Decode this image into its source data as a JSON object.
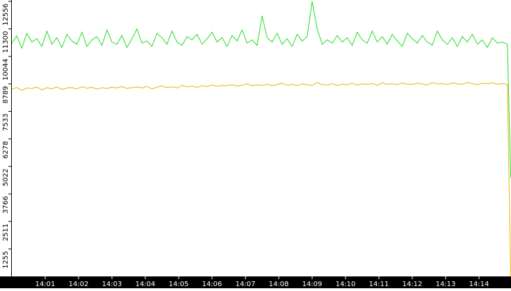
{
  "chart_data": {
    "type": "line",
    "x": [
      840,
      840.15,
      840.3,
      840.45,
      840.6,
      840.75,
      840.9,
      841.05,
      841.2,
      841.35,
      841.5,
      841.65,
      841.8,
      841.95,
      842.1,
      842.25,
      842.4,
      842.55,
      842.7,
      842.85,
      843,
      843.15,
      843.3,
      843.45,
      843.6,
      843.75,
      843.9,
      844.05,
      844.2,
      844.35,
      844.5,
      844.65,
      844.8,
      844.95,
      845.1,
      845.25,
      845.4,
      845.55,
      845.7,
      845.85,
      846,
      846.15,
      846.3,
      846.45,
      846.6,
      846.75,
      846.9,
      847.05,
      847.2,
      847.35,
      847.5,
      847.65,
      847.8,
      847.95,
      848.1,
      848.25,
      848.4,
      848.55,
      848.7,
      848.85,
      849,
      849.15,
      849.3,
      849.45,
      849.6,
      849.75,
      849.9,
      850.05,
      850.2,
      850.35,
      850.5,
      850.65,
      850.8,
      850.95,
      851.1,
      851.25,
      851.4,
      851.55,
      851.7,
      851.85,
      852,
      852.15,
      852.3,
      852.45,
      852.6,
      852.75,
      852.9,
      853.05,
      853.2,
      853.35,
      853.5,
      853.65,
      853.8,
      853.95,
      854.1,
      854.25,
      854.4,
      854.55,
      854.7,
      854.85,
      854.95
    ],
    "series": [
      {
        "color": "#22dd22",
        "values": [
          10650,
          10980,
          10420,
          11100,
          10700,
          10850,
          10500,
          11200,
          10600,
          10900,
          10450,
          11050,
          10750,
          10600,
          11150,
          10500,
          10800,
          10950,
          10550,
          11250,
          10700,
          10600,
          11000,
          10450,
          10850,
          11300,
          10650,
          10750,
          10500,
          11100,
          10900,
          10600,
          11200,
          10700,
          10550,
          10950,
          10800,
          11050,
          10600,
          10850,
          11150,
          10700,
          10900,
          10500,
          11000,
          10750,
          11250,
          10650,
          10800,
          10550,
          11900,
          10900,
          10700,
          11100,
          10600,
          10850,
          10500,
          11050,
          10750,
          10950,
          12556,
          11300,
          10600,
          10800,
          10650,
          11000,
          10700,
          10900,
          10550,
          11150,
          10800,
          10650,
          11200,
          10700,
          10950,
          10600,
          11050,
          10750,
          10500,
          11100,
          10850,
          10650,
          11000,
          10700,
          10550,
          11200,
          10800,
          10600,
          10900,
          10500,
          10950,
          10700,
          11050,
          10600,
          10800,
          10450,
          10900,
          10650,
          10700,
          10600,
          4500
        ]
      },
      {
        "color": "#e8b400",
        "values": [
          8550,
          8620,
          8500,
          8600,
          8580,
          8640,
          8520,
          8610,
          8570,
          8650,
          8540,
          8600,
          8620,
          8560,
          8660,
          8590,
          8630,
          8550,
          8610,
          8580,
          8640,
          8600,
          8670,
          8580,
          8620,
          8650,
          8600,
          8680,
          8560,
          8640,
          8700,
          8620,
          8660,
          8600,
          8720,
          8650,
          8690,
          8630,
          8710,
          8660,
          8740,
          8680,
          8720,
          8700,
          8760,
          8690,
          8730,
          8800,
          8700,
          8750,
          8720,
          8780,
          8700,
          8760,
          8820,
          8730,
          8770,
          8710,
          8790,
          8750,
          8720,
          8850,
          8760,
          8740,
          8800,
          8720,
          8780,
          8750,
          8820,
          8740,
          8790,
          8760,
          8810,
          8730,
          8840,
          8770,
          8800,
          8750,
          8830,
          8780,
          8760,
          8820,
          8790,
          8740,
          8850,
          8780,
          8810,
          8760,
          8830,
          8790,
          8770,
          8860,
          8800,
          8750,
          8820,
          8790,
          8840,
          8770,
          8810,
          8760,
          0
        ]
      }
    ],
    "xlim": [
      840,
      855
    ],
    "xticks": [
      {
        "value": 841,
        "label": "14:01"
      },
      {
        "value": 842,
        "label": "14:02"
      },
      {
        "value": 843,
        "label": "14:03"
      },
      {
        "value": 844,
        "label": "14:04"
      },
      {
        "value": 845,
        "label": "14:05"
      },
      {
        "value": 846,
        "label": "14:06"
      },
      {
        "value": 847,
        "label": "14:07"
      },
      {
        "value": 848,
        "label": "14:08"
      },
      {
        "value": 849,
        "label": "14:09"
      },
      {
        "value": 850,
        "label": "14:10"
      },
      {
        "value": 851,
        "label": "14:11"
      },
      {
        "value": 852,
        "label": "14:12"
      },
      {
        "value": 853,
        "label": "14:13"
      },
      {
        "value": 854,
        "label": "14:14"
      }
    ],
    "ylim": [
      0,
      12556
    ],
    "yticks": [
      1255,
      2511,
      3766,
      5022,
      6278,
      7533,
      8789,
      10044,
      11300,
      12556
    ]
  }
}
